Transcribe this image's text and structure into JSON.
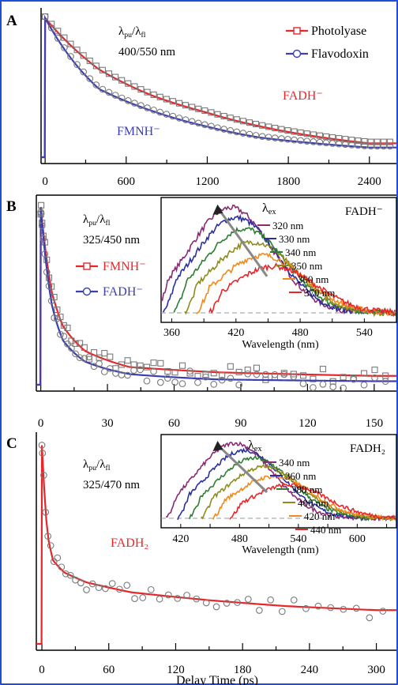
{
  "colors": {
    "border": "#1f4fd8",
    "red": "#e8262a",
    "blue": "#3b3fb0",
    "marker": "#7a7a7a"
  },
  "x_axis_title": "Delay Time (ps)",
  "chart_data": [
    {
      "type": "line",
      "panel_label": "A",
      "annotation_line1": "λpu/λfl",
      "annotation_line2": "400/550 nm",
      "xlim": [
        -30,
        2600
      ],
      "ylim": [
        0,
        1.05
      ],
      "x_ticks": [
        0,
        600,
        1200,
        1800,
        2400
      ],
      "x_tick_labels": [
        "0",
        "600",
        "1200",
        "1800",
        "2400"
      ],
      "legend_position": "top-right",
      "series": [
        {
          "name": "Photolyase",
          "label": "FADH⁻",
          "color": "#e8262a",
          "marker": "square",
          "x": [
            0,
            400,
            800,
            1200,
            1600,
            2000,
            2400
          ],
          "y": [
            1.0,
            0.63,
            0.44,
            0.32,
            0.22,
            0.15,
            0.1
          ]
        },
        {
          "name": "Flavodoxin",
          "label": "FMNH⁻",
          "color": "#3b3fb0",
          "marker": "circle",
          "x": [
            0,
            400,
            800,
            1200,
            1600,
            2000,
            2400
          ],
          "y": [
            1.0,
            0.49,
            0.33,
            0.22,
            0.14,
            0.1,
            0.07
          ]
        }
      ]
    },
    {
      "type": "line",
      "panel_label": "B",
      "annotation_line1": "λpu/λfl",
      "annotation_line2": "325/450 nm",
      "xlim": [
        -2,
        160
      ],
      "ylim": [
        0,
        1.05
      ],
      "x_ticks": [
        0,
        30,
        60,
        90,
        120,
        150
      ],
      "x_tick_labels": [
        "0",
        "30",
        "60",
        "90",
        "120",
        "150"
      ],
      "legend_position": "middle-left",
      "series": [
        {
          "name": "FMNH⁻",
          "color": "#e8262a",
          "marker": "square",
          "x": [
            0,
            5,
            10,
            20,
            40,
            80,
            150
          ],
          "y": [
            1.0,
            0.52,
            0.33,
            0.19,
            0.1,
            0.07,
            0.05
          ]
        },
        {
          "name": "FADH⁻",
          "color": "#3b3fb0",
          "marker": "circle",
          "x": [
            0,
            5,
            10,
            20,
            40,
            80,
            150
          ],
          "y": [
            1.0,
            0.45,
            0.25,
            0.13,
            0.06,
            0.03,
            0.02
          ]
        }
      ],
      "inset": {
        "title": "FADH⁻",
        "legend_title": "λex",
        "xlabel": "Wavelength (nm)",
        "xlim": [
          350,
          570
        ],
        "x_ticks": [
          360,
          420,
          480,
          540
        ],
        "x_tick_labels": [
          "360",
          "420",
          "480",
          "540"
        ],
        "spectra": [
          {
            "label": "320 nm",
            "color": "#8b2a72",
            "peak": 415,
            "amp": 0.95
          },
          {
            "label": "330 nm",
            "color": "#2a2fa0",
            "peak": 420,
            "amp": 0.86
          },
          {
            "label": "340 nm",
            "color": "#2e7d32",
            "peak": 428,
            "amp": 0.76
          },
          {
            "label": "350 nm",
            "color": "#8c8c1e",
            "peak": 436,
            "amp": 0.64
          },
          {
            "label": "360 nm",
            "color": "#f08a1a",
            "peak": 445,
            "amp": 0.52
          },
          {
            "label": "370 nm",
            "color": "#e8262a",
            "peak": 455,
            "amp": 0.42
          }
        ]
      }
    },
    {
      "type": "line",
      "panel_label": "C",
      "annotation_line1": "λpu/λfl",
      "annotation_line2": "325/470 nm",
      "xlim": [
        -5,
        318
      ],
      "ylim": [
        0,
        1.05
      ],
      "x_ticks": [
        0,
        60,
        120,
        180,
        240,
        300
      ],
      "x_tick_labels": [
        "0",
        "60",
        "120",
        "180",
        "240",
        "300"
      ],
      "series": [
        {
          "name": "FADH₂",
          "color": "#e8262a",
          "marker": "circle",
          "x": [
            0,
            5,
            10,
            20,
            40,
            80,
            150,
            220,
            300
          ],
          "y": [
            1.0,
            0.55,
            0.42,
            0.36,
            0.31,
            0.26,
            0.22,
            0.19,
            0.17
          ]
        }
      ],
      "inset": {
        "title": "FADH₂",
        "legend_title": "λex",
        "xlabel": "Wavelength (nm)",
        "xlim": [
          400,
          640
        ],
        "x_ticks": [
          420,
          480,
          540,
          600
        ],
        "x_tick_labels": [
          "420",
          "480",
          "540",
          "600"
        ],
        "spectra": [
          {
            "label": "340 nm",
            "color": "#8b2a72",
            "peak": 475,
            "amp": 0.95
          },
          {
            "label": "360 nm",
            "color": "#2a2fa0",
            "peak": 485,
            "amp": 0.86
          },
          {
            "label": "380 nm",
            "color": "#2e7d32",
            "peak": 495,
            "amp": 0.76
          },
          {
            "label": "400 nm",
            "color": "#8c8c1e",
            "peak": 505,
            "amp": 0.65
          },
          {
            "label": "420 nm",
            "color": "#f08a1a",
            "peak": 515,
            "amp": 0.53
          },
          {
            "label": "440 nm",
            "color": "#e8262a",
            "peak": 530,
            "amp": 0.42
          }
        ]
      }
    }
  ]
}
